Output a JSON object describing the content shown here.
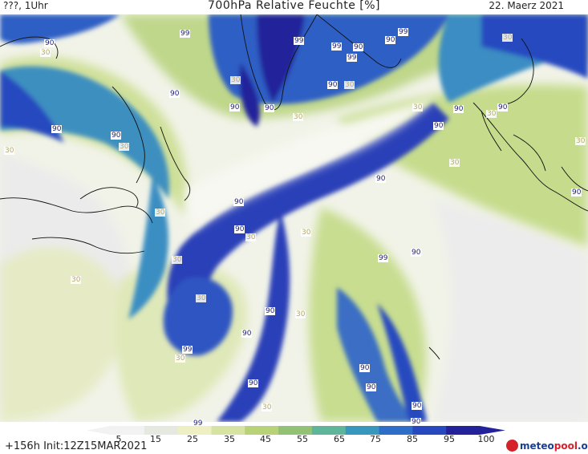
{
  "header": {
    "left": "???, 1Uhr",
    "title": "700hPa Relative Feuchte [%]",
    "date": "22. Maerz 2021"
  },
  "footer": {
    "run": "+156h Init:12Z15MAR2021",
    "logo_text_a": "meteo",
    "logo_text_b": "pool",
    "logo_text_c": ".org"
  },
  "colorbar": {
    "ticks": [
      "5",
      "15",
      "25",
      "35",
      "45",
      "55",
      "65",
      "75",
      "85",
      "95",
      "100"
    ],
    "colors": [
      "#f2f2f2",
      "#e6e9e0",
      "#eef0c4",
      "#d7e3a2",
      "#b8d277",
      "#93c277",
      "#5fb59a",
      "#3797bd",
      "#2f6ec8",
      "#2848c0",
      "#24229a"
    ]
  },
  "contour_labels": [
    {
      "v": "90"
    },
    {
      "v": "30"
    },
    {
      "v": "99"
    },
    {
      "v": "99"
    },
    {
      "v": "99"
    },
    {
      "v": "90"
    },
    {
      "v": "90"
    },
    {
      "v": "99"
    },
    {
      "v": "99"
    },
    {
      "v": "90"
    },
    {
      "v": "30"
    },
    {
      "v": "30"
    },
    {
      "v": "90"
    },
    {
      "v": "90"
    },
    {
      "v": "90"
    },
    {
      "v": "30"
    },
    {
      "v": "30"
    },
    {
      "v": "90"
    },
    {
      "v": "30"
    },
    {
      "v": "90"
    },
    {
      "v": "90"
    },
    {
      "v": "90"
    },
    {
      "v": "90"
    },
    {
      "v": "30"
    },
    {
      "v": "30"
    },
    {
      "v": "90"
    },
    {
      "v": "30"
    },
    {
      "v": "30"
    },
    {
      "v": "90"
    },
    {
      "v": "90"
    },
    {
      "v": "30"
    },
    {
      "v": "30"
    },
    {
      "v": "30"
    },
    {
      "v": "99"
    },
    {
      "v": "90"
    },
    {
      "v": "30"
    },
    {
      "v": "30"
    },
    {
      "v": "90"
    },
    {
      "v": "30"
    },
    {
      "v": "90"
    },
    {
      "v": "99"
    },
    {
      "v": "30"
    },
    {
      "v": "90"
    },
    {
      "v": "90"
    },
    {
      "v": "90"
    },
    {
      "v": "90"
    },
    {
      "v": "30"
    },
    {
      "v": "99"
    },
    {
      "v": "90"
    },
    {
      "v": "30"
    },
    {
      "v": "30"
    },
    {
      "v": "90"
    }
  ]
}
